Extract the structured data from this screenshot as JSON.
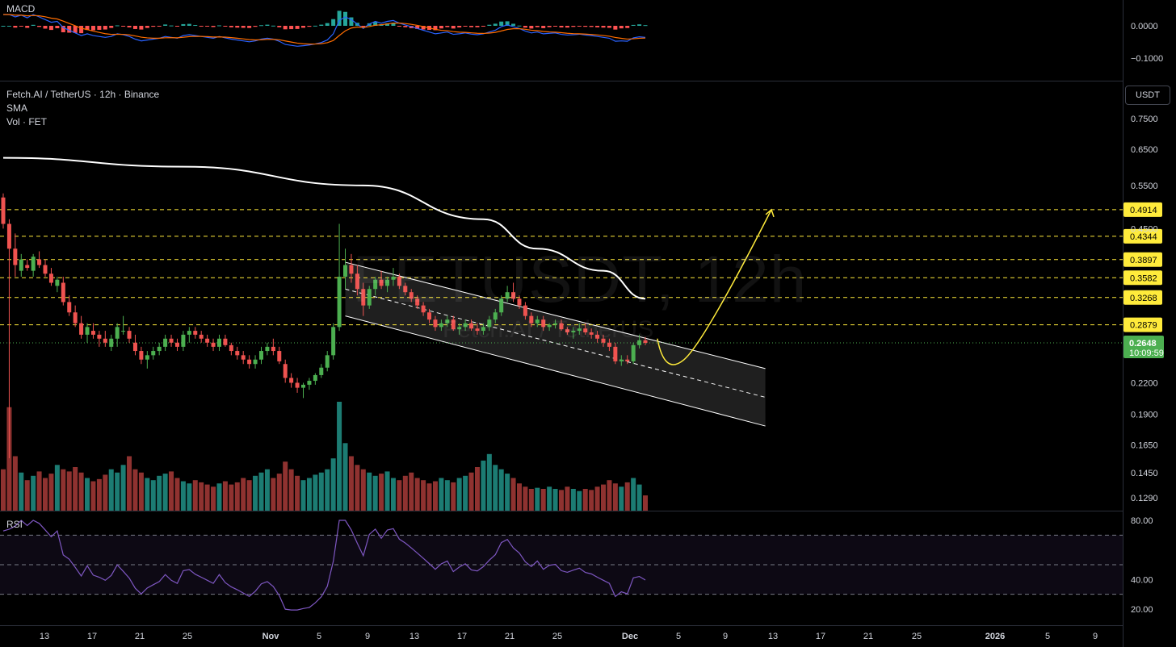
{
  "macd_panel": {
    "label": "MACD",
    "ticks": [
      "0.0000",
      "−0.1000"
    ]
  },
  "main_panel": {
    "symbol_line": "Fetch.AI / TetherUS · 12h · Binance",
    "indicator_sma": "SMA",
    "indicator_vol": "Vol · FET",
    "watermark": "FETUSDT, 12h",
    "watermark_sub": "Fetch.AI / TetherUS",
    "currency_badge": "USDT",
    "price_ticks": [
      "0.7500",
      "0.6500",
      "0.5500",
      "0.4500",
      "0.2200",
      "0.1900",
      "0.1650",
      "0.1450",
      "0.1290"
    ],
    "resistance_levels": [
      "0.4914",
      "0.4344",
      "0.3897",
      "0.3582",
      "0.3268",
      "0.2879"
    ],
    "current_price": "0.2648",
    "countdown": "10:09:59"
  },
  "rsi_panel": {
    "label": "RSI",
    "ticks": [
      "80.00",
      "40.00",
      "20.00"
    ]
  },
  "time_axis": [
    "13",
    "17",
    "21",
    "25",
    "Nov",
    "5",
    "9",
    "13",
    "17",
    "21",
    "25",
    "Dec",
    "5",
    "9",
    "13",
    "17",
    "21",
    "25",
    "2026",
    "5",
    "9"
  ],
  "colors": {
    "up": "#26a69a",
    "down": "#ef5350",
    "candle_up": "#4caf50",
    "candle_down": "#ef5350",
    "sma": "#ffffff",
    "levels": "#ffeb3b",
    "rsi": "#7e57c2",
    "macd": "#2962ff",
    "signal": "#ff6d00"
  },
  "chart_data": {
    "type": "candlestick",
    "title": "Fetch.AI / TetherUS · 12h · Binance",
    "y_scale": "log",
    "x": [
      "Oct 10 12:00",
      "Oct 11 00:00",
      "Oct 11 12:00",
      "Oct 12 00:00",
      "Oct 12 12:00",
      "Oct 13 00:00",
      "Oct 13 12:00",
      "Oct 14 00:00",
      "Oct 14 12:00",
      "Oct 15 00:00",
      "Oct 15 12:00",
      "Oct 16 00:00",
      "Oct 16 12:00",
      "Oct 17 00:00",
      "Oct 17 12:00",
      "Oct 18 00:00",
      "Oct 18 12:00",
      "Oct 19 00:00",
      "Oct 19 12:00",
      "Oct 20 00:00",
      "Oct 20 12:00",
      "Oct 21 00:00",
      "Oct 21 12:00",
      "Oct 22 00:00",
      "Oct 22 12:00",
      "Oct 23 00:00",
      "Oct 23 12:00",
      "Oct 24 00:00",
      "Oct 24 12:00",
      "Oct 25 00:00",
      "Oct 25 12:00",
      "Oct 26 00:00",
      "Oct 26 12:00",
      "Oct 27 00:00",
      "Oct 27 12:00",
      "Oct 28 00:00",
      "Oct 28 12:00",
      "Oct 29 00:00",
      "Oct 29 12:00",
      "Oct 30 00:00",
      "Oct 30 12:00",
      "Oct 31 00:00",
      "Oct 31 12:00",
      "Nov 1 00:00",
      "Nov 1 12:00",
      "Nov 2 00:00",
      "Nov 2 12:00",
      "Nov 3 00:00",
      "Nov 3 12:00",
      "Nov 4 00:00",
      "Nov 4 12:00",
      "Nov 5 00:00",
      "Nov 5 12:00",
      "Nov 6 00:00",
      "Nov 6 12:00",
      "Nov 7 00:00",
      "Nov 7 12:00",
      "Nov 8 00:00",
      "Nov 8 12:00",
      "Nov 9 00:00",
      "Nov 9 12:00",
      "Nov 10 00:00",
      "Nov 10 12:00",
      "Nov 11 00:00",
      "Nov 11 12:00",
      "Nov 12 00:00",
      "Nov 12 12:00",
      "Nov 13 00:00",
      "Nov 13 12:00",
      "Nov 14 00:00",
      "Nov 14 12:00",
      "Nov 15 00:00",
      "Nov 15 12:00",
      "Nov 16 00:00",
      "Nov 16 12:00",
      "Nov 17 00:00",
      "Nov 17 12:00",
      "Nov 18 00:00",
      "Nov 18 12:00",
      "Nov 19 00:00",
      "Nov 19 12:00",
      "Nov 20 00:00",
      "Nov 20 12:00",
      "Nov 21 00:00",
      "Nov 21 12:00",
      "Nov 22 00:00",
      "Nov 22 12:00",
      "Nov 23 00:00",
      "Nov 23 12:00",
      "Nov 24 00:00",
      "Nov 24 12:00",
      "Nov 25 00:00",
      "Nov 25 12:00",
      "Nov 26 00:00",
      "Nov 26 12:00",
      "Nov 27 00:00",
      "Nov 27 12:00",
      "Nov 28 00:00",
      "Nov 28 12:00",
      "Nov 29 00:00",
      "Nov 29 12:00",
      "Nov 30 00:00",
      "Nov 30 12:00",
      "Dec 1 00:00",
      "Dec 1 12:00",
      "Dec 2 00:00",
      "Dec 2 12:00",
      "Dec 3 00:00"
    ],
    "ohlc": [
      [
        0.52,
        0.53,
        0.45,
        0.46
      ],
      [
        0.46,
        0.47,
        0.155,
        0.41
      ],
      [
        0.41,
        0.44,
        0.36,
        0.38
      ],
      [
        0.37,
        0.4,
        0.36,
        0.39
      ],
      [
        0.38,
        0.39,
        0.37,
        0.375
      ],
      [
        0.37,
        0.4,
        0.36,
        0.395
      ],
      [
        0.39,
        0.405,
        0.375,
        0.38
      ],
      [
        0.38,
        0.39,
        0.36,
        0.365
      ],
      [
        0.365,
        0.375,
        0.345,
        0.35
      ],
      [
        0.345,
        0.36,
        0.335,
        0.355
      ],
      [
        0.35,
        0.36,
        0.315,
        0.32
      ],
      [
        0.32,
        0.33,
        0.3,
        0.305
      ],
      [
        0.305,
        0.315,
        0.285,
        0.29
      ],
      [
        0.29,
        0.3,
        0.27,
        0.275
      ],
      [
        0.275,
        0.29,
        0.265,
        0.285
      ],
      [
        0.28,
        0.29,
        0.27,
        0.275
      ],
      [
        0.275,
        0.28,
        0.26,
        0.27
      ],
      [
        0.27,
        0.28,
        0.26,
        0.265
      ],
      [
        0.26,
        0.275,
        0.255,
        0.27
      ],
      [
        0.27,
        0.29,
        0.26,
        0.285
      ],
      [
        0.28,
        0.3,
        0.275,
        0.28
      ],
      [
        0.28,
        0.285,
        0.265,
        0.27
      ],
      [
        0.265,
        0.275,
        0.25,
        0.255
      ],
      [
        0.255,
        0.26,
        0.24,
        0.245
      ],
      [
        0.245,
        0.255,
        0.235,
        0.25
      ],
      [
        0.25,
        0.26,
        0.245,
        0.255
      ],
      [
        0.255,
        0.265,
        0.25,
        0.26
      ],
      [
        0.26,
        0.275,
        0.255,
        0.27
      ],
      [
        0.27,
        0.275,
        0.26,
        0.265
      ],
      [
        0.265,
        0.27,
        0.255,
        0.26
      ],
      [
        0.26,
        0.28,
        0.255,
        0.275
      ],
      [
        0.275,
        0.285,
        0.265,
        0.28
      ],
      [
        0.28,
        0.285,
        0.27,
        0.275
      ],
      [
        0.275,
        0.28,
        0.265,
        0.27
      ],
      [
        0.27,
        0.275,
        0.26,
        0.265
      ],
      [
        0.265,
        0.27,
        0.255,
        0.26
      ],
      [
        0.26,
        0.275,
        0.255,
        0.27
      ],
      [
        0.27,
        0.275,
        0.26,
        0.262
      ],
      [
        0.262,
        0.265,
        0.25,
        0.255
      ],
      [
        0.255,
        0.26,
        0.245,
        0.25
      ],
      [
        0.25,
        0.255,
        0.24,
        0.245
      ],
      [
        0.245,
        0.25,
        0.235,
        0.24
      ],
      [
        0.24,
        0.25,
        0.235,
        0.245
      ],
      [
        0.245,
        0.26,
        0.24,
        0.255
      ],
      [
        0.255,
        0.265,
        0.25,
        0.26
      ],
      [
        0.26,
        0.27,
        0.25,
        0.255
      ],
      [
        0.255,
        0.26,
        0.24,
        0.243
      ],
      [
        0.24,
        0.245,
        0.22,
        0.225
      ],
      [
        0.225,
        0.23,
        0.215,
        0.22
      ],
      [
        0.22,
        0.225,
        0.21,
        0.215
      ],
      [
        0.215,
        0.22,
        0.205,
        0.218
      ],
      [
        0.218,
        0.225,
        0.213,
        0.222
      ],
      [
        0.222,
        0.23,
        0.218,
        0.228
      ],
      [
        0.228,
        0.24,
        0.225,
        0.236
      ],
      [
        0.236,
        0.255,
        0.232,
        0.25
      ],
      [
        0.25,
        0.29,
        0.245,
        0.285
      ],
      [
        0.285,
        0.46,
        0.28,
        0.36
      ],
      [
        0.36,
        0.41,
        0.34,
        0.38
      ],
      [
        0.38,
        0.4,
        0.35,
        0.365
      ],
      [
        0.365,
        0.38,
        0.33,
        0.34
      ],
      [
        0.34,
        0.35,
        0.3,
        0.315
      ],
      [
        0.315,
        0.345,
        0.31,
        0.34
      ],
      [
        0.34,
        0.36,
        0.33,
        0.355
      ],
      [
        0.355,
        0.37,
        0.34,
        0.345
      ],
      [
        0.345,
        0.36,
        0.335,
        0.355
      ],
      [
        0.355,
        0.375,
        0.345,
        0.36
      ],
      [
        0.36,
        0.365,
        0.34,
        0.345
      ],
      [
        0.345,
        0.35,
        0.33,
        0.335
      ],
      [
        0.335,
        0.34,
        0.32,
        0.325
      ],
      [
        0.325,
        0.33,
        0.31,
        0.315
      ],
      [
        0.315,
        0.32,
        0.3,
        0.305
      ],
      [
        0.305,
        0.31,
        0.29,
        0.295
      ],
      [
        0.295,
        0.3,
        0.28,
        0.285
      ],
      [
        0.285,
        0.295,
        0.28,
        0.29
      ],
      [
        0.29,
        0.3,
        0.285,
        0.295
      ],
      [
        0.295,
        0.3,
        0.28,
        0.282
      ],
      [
        0.282,
        0.29,
        0.275,
        0.285
      ],
      [
        0.285,
        0.295,
        0.28,
        0.29
      ],
      [
        0.29,
        0.295,
        0.28,
        0.283
      ],
      [
        0.283,
        0.29,
        0.275,
        0.28
      ],
      [
        0.28,
        0.29,
        0.275,
        0.285
      ],
      [
        0.285,
        0.3,
        0.28,
        0.295
      ],
      [
        0.295,
        0.31,
        0.29,
        0.305
      ],
      [
        0.305,
        0.33,
        0.3,
        0.325
      ],
      [
        0.325,
        0.345,
        0.32,
        0.335
      ],
      [
        0.335,
        0.35,
        0.32,
        0.325
      ],
      [
        0.325,
        0.33,
        0.31,
        0.315
      ],
      [
        0.315,
        0.32,
        0.295,
        0.3
      ],
      [
        0.3,
        0.305,
        0.285,
        0.29
      ],
      [
        0.29,
        0.3,
        0.285,
        0.295
      ],
      [
        0.295,
        0.3,
        0.28,
        0.285
      ],
      [
        0.285,
        0.29,
        0.28,
        0.288
      ],
      [
        0.288,
        0.295,
        0.283,
        0.29
      ],
      [
        0.29,
        0.295,
        0.28,
        0.282
      ],
      [
        0.282,
        0.285,
        0.275,
        0.278
      ],
      [
        0.278,
        0.285,
        0.27,
        0.28
      ],
      [
        0.28,
        0.29,
        0.275,
        0.283
      ],
      [
        0.283,
        0.29,
        0.275,
        0.278
      ],
      [
        0.278,
        0.283,
        0.27,
        0.275
      ],
      [
        0.275,
        0.28,
        0.265,
        0.27
      ],
      [
        0.27,
        0.275,
        0.26,
        0.265
      ],
      [
        0.265,
        0.27,
        0.255,
        0.26
      ],
      [
        0.26,
        0.265,
        0.24,
        0.243
      ],
      [
        0.243,
        0.25,
        0.238,
        0.245
      ],
      [
        0.245,
        0.25,
        0.24,
        0.243
      ],
      [
        0.243,
        0.265,
        0.24,
        0.262
      ],
      [
        0.262,
        0.275,
        0.258,
        0.268
      ],
      [
        0.268,
        0.272,
        0.262,
        0.2648
      ]
    ],
    "volume_relative": [
      0.38,
      0.95,
      0.5,
      0.35,
      0.28,
      0.32,
      0.36,
      0.3,
      0.34,
      0.42,
      0.38,
      0.36,
      0.4,
      0.35,
      0.3,
      0.27,
      0.29,
      0.33,
      0.38,
      0.35,
      0.42,
      0.5,
      0.38,
      0.35,
      0.3,
      0.28,
      0.32,
      0.34,
      0.36,
      0.3,
      0.27,
      0.25,
      0.28,
      0.26,
      0.24,
      0.22,
      0.25,
      0.27,
      0.24,
      0.26,
      0.3,
      0.28,
      0.32,
      0.35,
      0.38,
      0.3,
      0.34,
      0.45,
      0.38,
      0.32,
      0.28,
      0.3,
      0.33,
      0.35,
      0.38,
      0.48,
      1.0,
      0.62,
      0.5,
      0.42,
      0.38,
      0.35,
      0.32,
      0.34,
      0.36,
      0.3,
      0.28,
      0.32,
      0.35,
      0.3,
      0.28,
      0.25,
      0.27,
      0.3,
      0.28,
      0.26,
      0.3,
      0.32,
      0.35,
      0.4,
      0.46,
      0.52,
      0.42,
      0.38,
      0.34,
      0.3,
      0.25,
      0.22,
      0.2,
      0.21,
      0.2,
      0.22,
      0.2,
      0.19,
      0.22,
      0.2,
      0.18,
      0.2,
      0.19,
      0.22,
      0.24,
      0.28,
      0.25,
      0.22,
      0.26,
      0.3,
      0.24,
      0.14
    ],
    "sma_curve": [
      [
        0,
        0.625
      ],
      [
        30,
        0.6
      ],
      [
        60,
        0.55
      ],
      [
        80,
        0.47
      ],
      [
        89,
        0.41
      ],
      [
        100,
        0.37
      ],
      [
        107,
        0.325
      ]
    ],
    "channel": {
      "upper_start": [
        57,
        0.385
      ],
      "upper_end": [
        127,
        0.235
      ],
      "lower_start": [
        57,
        0.3
      ],
      "lower_end": [
        127,
        0.18
      ]
    },
    "projection_target": 0.4914,
    "horizontal_levels": [
      0.4914,
      0.4344,
      0.3897,
      0.3582,
      0.3268,
      0.2879
    ],
    "rsi_range": [
      15,
      85
    ],
    "macd_range": [
      -0.14,
      0.04
    ]
  }
}
